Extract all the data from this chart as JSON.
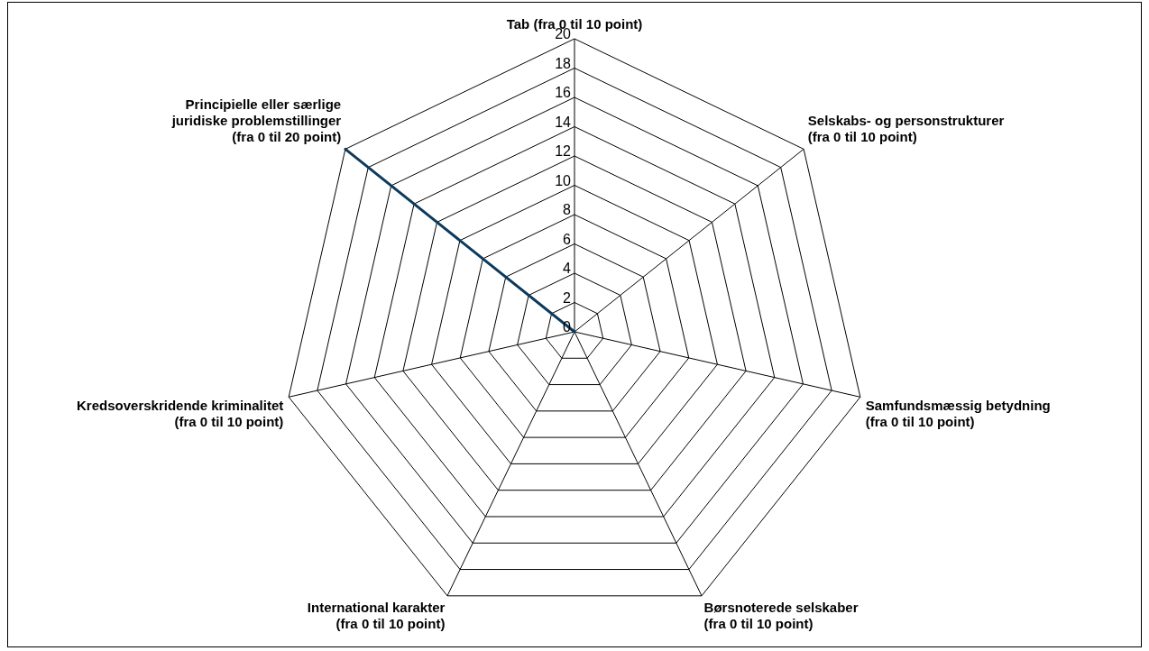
{
  "chart_data": {
    "type": "radar",
    "categories": [
      "Tab (fra 0 til 10 point)",
      "Selskabs- og personstrukturer\n(fra 0 til 10 point)",
      "Samfundsmæssig betydning\n(fra 0 til 10 point)",
      "Børsnoterede selskaber\n(fra 0 til 10 point)",
      "International karakter\n(fra 0 til 10 point)",
      "Kredsoverskridende kriminalitet\n(fra 0 til 10 point)",
      "Principielle eller særlige\njuridiske problemstillinger\n(fra 0 til 20 point)"
    ],
    "series": [
      {
        "color": "#0d3a5c",
        "values": [
          0,
          0,
          0,
          0,
          0,
          0,
          20
        ]
      }
    ],
    "ylim": [
      0,
      20
    ],
    "yticks": [
      0,
      2,
      4,
      6,
      8,
      10,
      12,
      14,
      16,
      18,
      20
    ],
    "grid": true,
    "legend": false,
    "marker": "none"
  }
}
